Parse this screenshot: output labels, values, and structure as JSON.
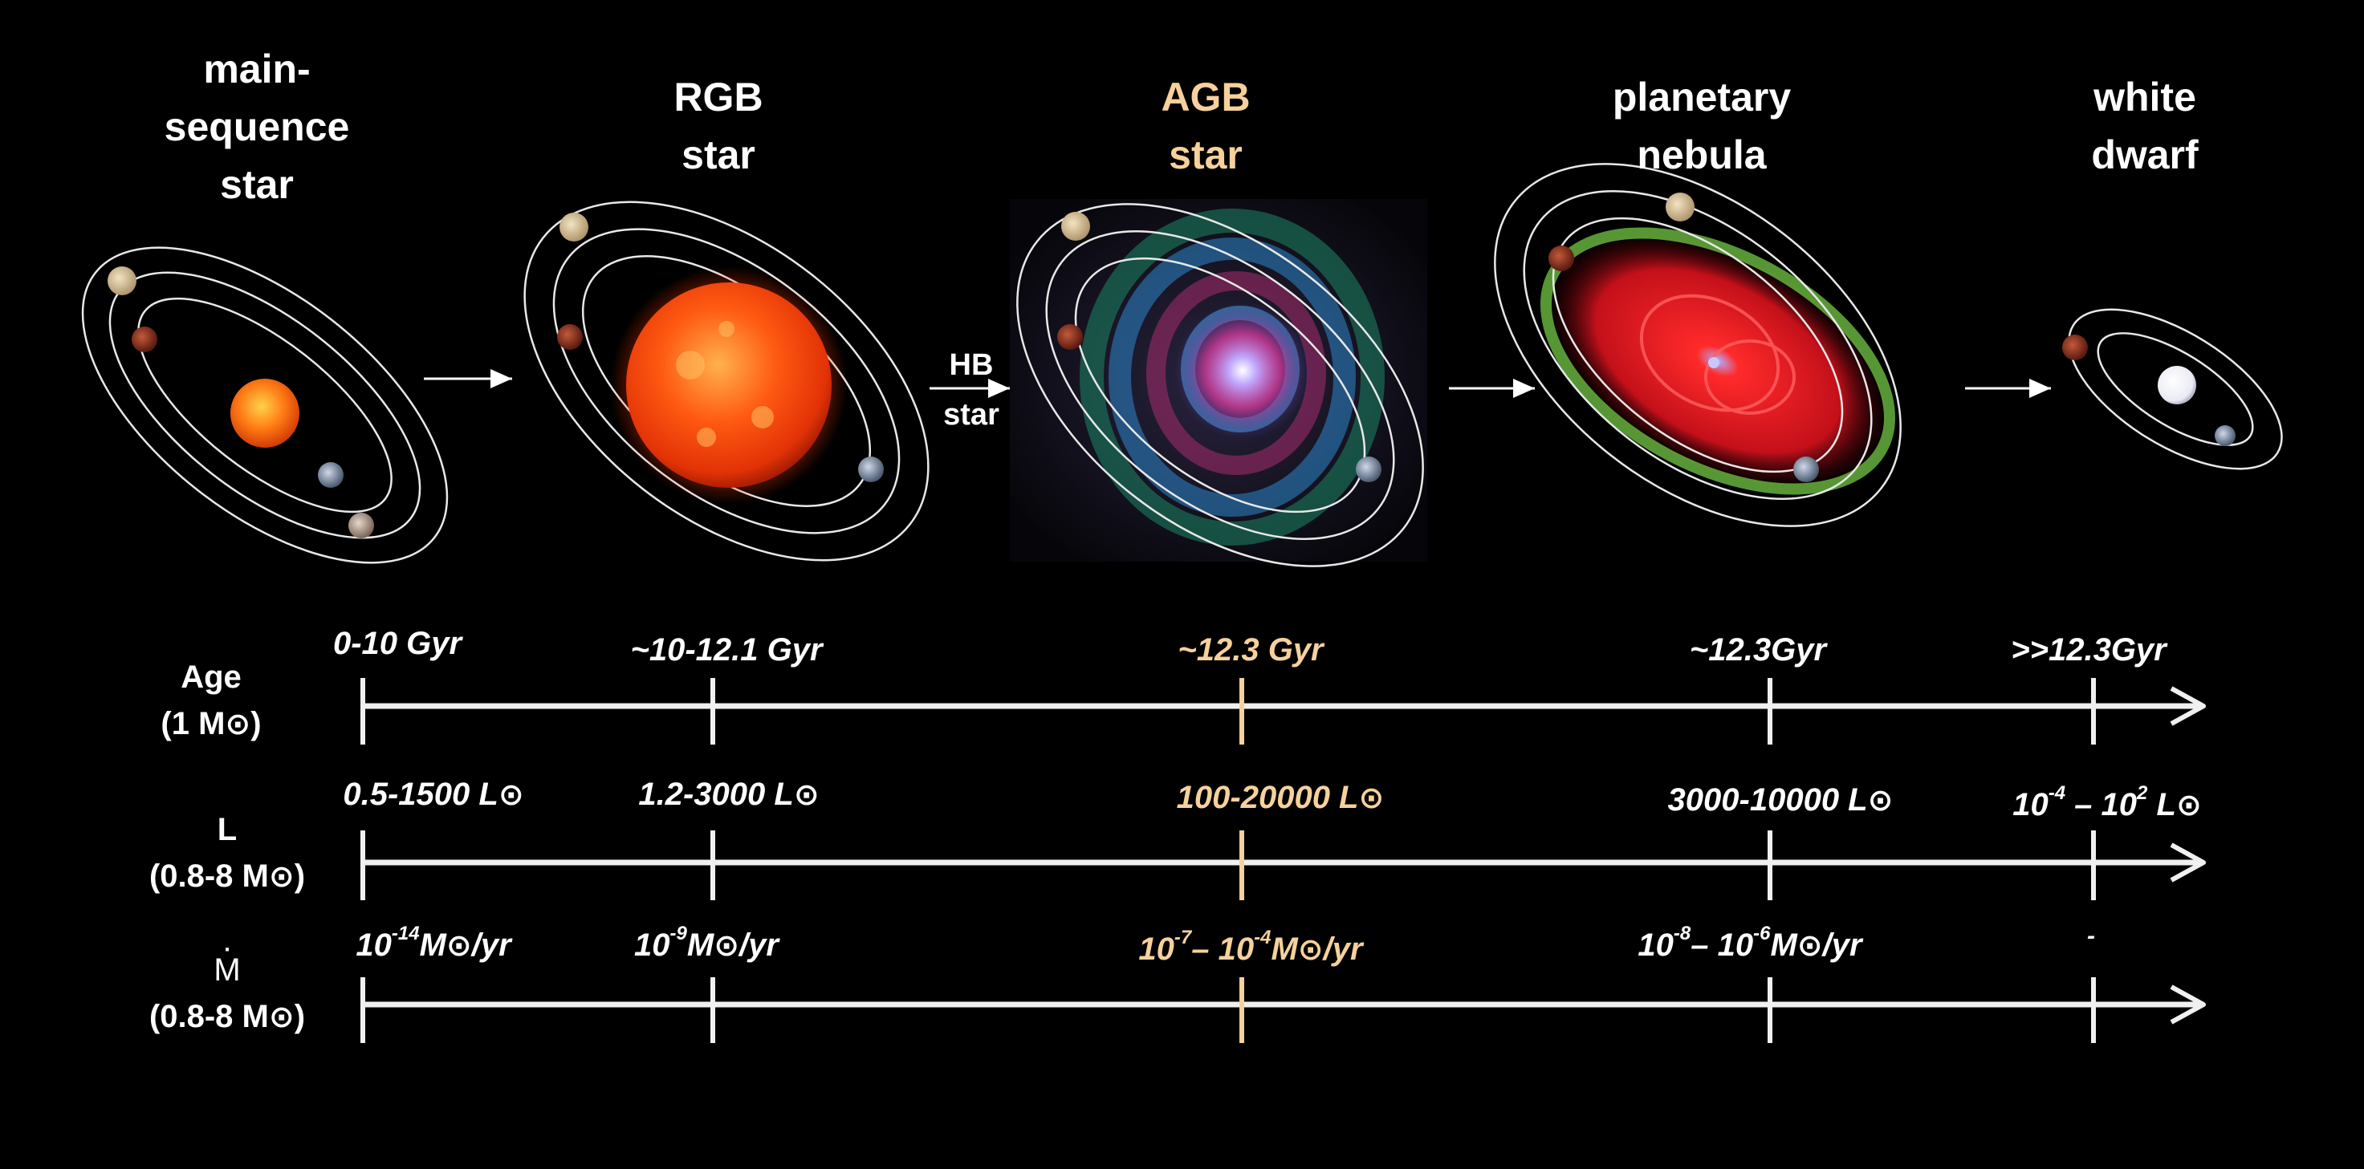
{
  "stages": [
    {
      "id": "main-sequence-star",
      "label": "main-\nsequence\nstar",
      "highlight": false
    },
    {
      "id": "rgb-star",
      "label": "RGB\nstar",
      "highlight": false
    },
    {
      "id": "agb-star",
      "label": "AGB\nstar",
      "highlight": true
    },
    {
      "id": "planetary-nebula",
      "label": "planetary\nnebula",
      "highlight": false
    },
    {
      "id": "white-dwarf",
      "label": "white\ndwarf",
      "highlight": false
    }
  ],
  "hb_label": "HB\nstar",
  "rows": {
    "age": {
      "label": "Age",
      "sublabel": "(1 M",
      "sublabel_close": ")",
      "values": [
        "0-10 Gyr",
        "~10-12.1 Gyr",
        "~12.3 Gyr",
        "~12.3Gyr",
        ">>12.3Gyr"
      ]
    },
    "luminosity": {
      "label": "L",
      "sublabel": "(0.8-8 M",
      "sublabel_close": ")",
      "values": [
        {
          "text": "0.5-1500 L"
        },
        {
          "text": "1.2-3000 L"
        },
        {
          "text": "100-20000  L"
        },
        {
          "text": "3000-10000 L"
        },
        {
          "pre": "10",
          "exp1": "-4",
          "mid": "  –  10",
          "exp2": "2",
          "unit": "  L"
        }
      ]
    },
    "mass_loss": {
      "label": "M",
      "dot": "·",
      "sublabel": "(0.8-8 M",
      "sublabel_close": ")",
      "values": [
        {
          "pre": "10",
          "exp1": "-14",
          "unit": "M",
          "tail": "/yr"
        },
        {
          "pre": "10",
          "exp1": "-9",
          "unit": "M",
          "tail": "/yr"
        },
        {
          "pre": "10",
          "exp1": "-7",
          "mid": "–  10",
          "exp2": "-4",
          "unit": "M",
          "tail": "/yr"
        },
        {
          "pre": "10",
          "exp1": "-8",
          "mid": "–  10",
          "exp2": "-6",
          "unit": "M",
          "tail": "/yr"
        },
        {
          "text": "-"
        }
      ]
    }
  },
  "sun_symbol": "⊙",
  "colors": {
    "background": "#000000",
    "text": "#ffffff",
    "highlight": "#f6d19c"
  }
}
